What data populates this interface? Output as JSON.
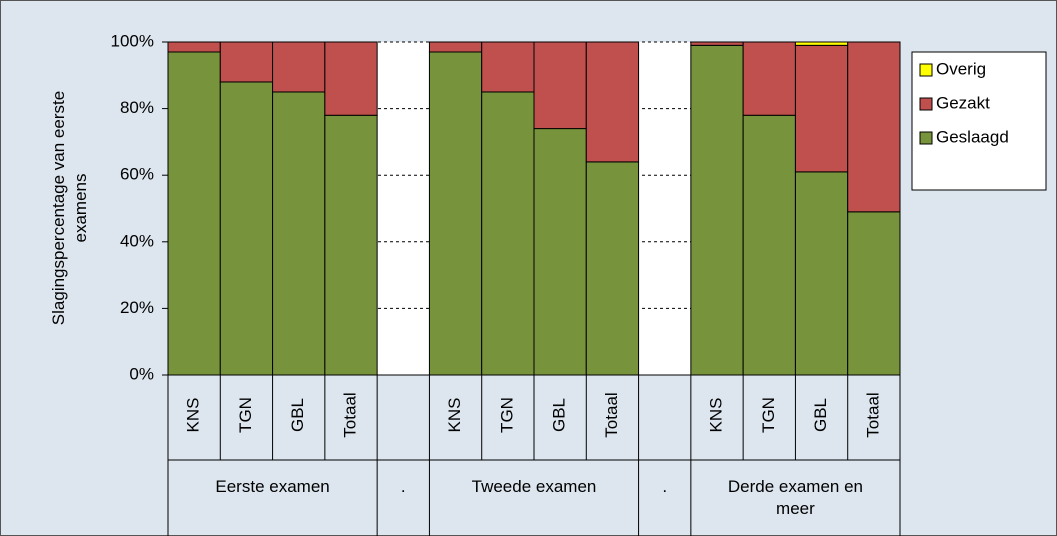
{
  "chart_data": {
    "type": "stacked_bar",
    "ylabel": "Slagingspercentage van eerste examens",
    "categories": [
      "KNS",
      "TGN",
      "GBL",
      "Totaal",
      null,
      "KNS",
      "TGN",
      "GBL",
      "Totaal",
      null,
      "KNS",
      "TGN",
      "GBL",
      "Totaal"
    ],
    "groups": [
      {
        "label": "Eerste examen",
        "span": 4
      },
      {
        "label": ".",
        "span": 1
      },
      {
        "label": "Tweede examen",
        "span": 4
      },
      {
        "label": ".",
        "span": 1
      },
      {
        "label": "Derde examen en meer",
        "span": 4
      }
    ],
    "series": [
      {
        "name": "Geslaagd",
        "color": "#77933c",
        "values": [
          97,
          88,
          85,
          78,
          null,
          97,
          85,
          74,
          64,
          null,
          99,
          78,
          61,
          49
        ]
      },
      {
        "name": "Gezakt",
        "color": "#c0504d",
        "values": [
          3,
          12,
          15,
          22,
          null,
          3,
          15,
          26,
          36,
          null,
          1,
          22,
          38,
          51
        ]
      },
      {
        "name": "Overig",
        "color": "#ffff00",
        "values": [
          0,
          0,
          0,
          0,
          null,
          0,
          0,
          0,
          0,
          null,
          0,
          0,
          1,
          0
        ]
      }
    ],
    "ylim": [
      0,
      100
    ],
    "yticks": [
      {
        "value": 0,
        "label": "0%"
      },
      {
        "value": 20,
        "label": "20%"
      },
      {
        "value": 40,
        "label": "40%"
      },
      {
        "value": 60,
        "label": "60%"
      },
      {
        "value": 80,
        "label": "80%"
      },
      {
        "value": 100,
        "label": "100%"
      }
    ],
    "grid": true,
    "legend": "right"
  }
}
